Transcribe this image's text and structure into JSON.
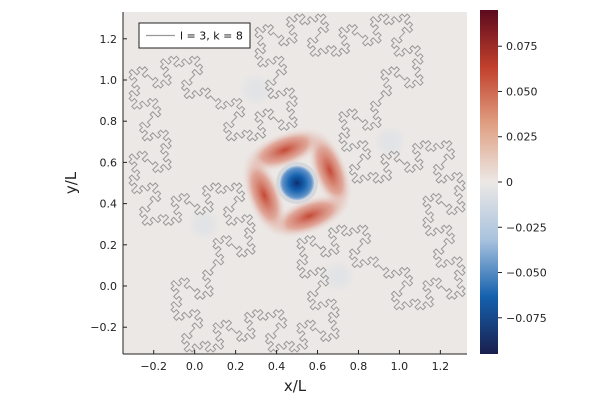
{
  "chart_data": {
    "type": "heatmap",
    "title": "",
    "xlabel": "x/L",
    "ylabel": "y/L",
    "xlim": [
      -0.35,
      1.33
    ],
    "ylim": [
      -0.33,
      1.33
    ],
    "xticks": [
      -0.2,
      0.0,
      0.2,
      0.4,
      0.6,
      0.8,
      1.0,
      1.2
    ],
    "yticks": [
      -0.2,
      0.0,
      0.2,
      0.4,
      0.6,
      0.8,
      1.0,
      1.2
    ],
    "xtick_labels": [
      "−0.2",
      "0.0",
      "0.2",
      "0.4",
      "0.6",
      "0.8",
      "1.0",
      "1.2"
    ],
    "ytick_labels": [
      "−0.2",
      "0.0",
      "0.2",
      "0.4",
      "0.6",
      "0.8",
      "1.0",
      "1.2"
    ],
    "colorbar": {
      "range": [
        -0.095,
        0.095
      ],
      "ticks": [
        -0.075,
        -0.05,
        -0.025,
        0,
        0.025,
        0.05,
        0.075
      ],
      "tick_labels": [
        "−0.075",
        "−0.050",
        "−0.025",
        "0",
        "0.025",
        "0.050",
        "0.075"
      ],
      "colors": [
        "#1a1f4d",
        "#1561ae",
        "#a9c3de",
        "#ece8e6",
        "#e0a084",
        "#c2402c",
        "#5c0a1e"
      ]
    },
    "background_value": 0.0,
    "features": [
      {
        "kind": "negative-peak",
        "x": 0.5,
        "y": 0.5,
        "value": -0.09
      },
      {
        "kind": "positive-lobe",
        "x": 0.44,
        "y": 0.66,
        "value": 0.055
      },
      {
        "kind": "positive-lobe",
        "x": 0.66,
        "y": 0.56,
        "value": 0.055
      },
      {
        "kind": "positive-lobe",
        "x": 0.56,
        "y": 0.34,
        "value": 0.055
      },
      {
        "kind": "positive-lobe",
        "x": 0.34,
        "y": 0.44,
        "value": 0.055
      }
    ],
    "series": [
      {
        "name": "l = 3, k = 8",
        "kind": "fractal-boundary",
        "color": "#999999",
        "center": [
          0.5,
          0.5
        ],
        "outer_radius": 0.82,
        "level": 3
      }
    ],
    "legend": {
      "placement": "top-left",
      "label": "l = 3, k = 8"
    },
    "grid": false
  }
}
